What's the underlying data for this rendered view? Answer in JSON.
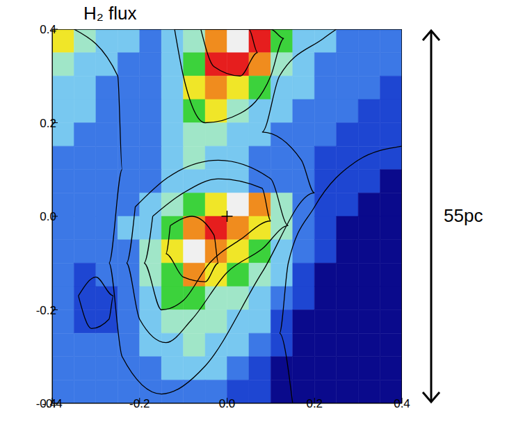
{
  "chart_data": {
    "type": "heatmap",
    "title": "H₂ flux",
    "annotations": [
      "55pc"
    ],
    "xlim": [
      -0.4,
      0.4
    ],
    "ylim": [
      -0.4,
      0.4
    ],
    "xticks": [
      -0.4,
      -0.2,
      {
        "value": 0,
        "label": "0.0"
      },
      0.2,
      0.4
    ],
    "yticks": [
      -0.4,
      -0.2,
      {
        "value": 0,
        "label": "0.0"
      },
      0.2,
      0.4
    ],
    "grid": false,
    "cell_x": [
      -0.375,
      -0.325,
      -0.275,
      -0.225,
      -0.175,
      -0.125,
      -0.075,
      -0.025,
      0.025,
      0.075,
      0.125,
      0.175,
      0.225,
      0.275,
      0.325,
      0.375
    ],
    "cell_y": [
      0.375,
      0.325,
      0.275,
      0.225,
      0.175,
      0.125,
      0.075,
      0.025,
      -0.025,
      -0.075,
      -0.125,
      -0.175,
      -0.225,
      -0.275,
      -0.325,
      -0.375
    ],
    "cells": [
      [
        7,
        5,
        4,
        4,
        3,
        4,
        5,
        8,
        10,
        9,
        6,
        4,
        4,
        3,
        3,
        3
      ],
      [
        5,
        4,
        4,
        3,
        3,
        4,
        6,
        9,
        9,
        8,
        5,
        4,
        3,
        3,
        3,
        3
      ],
      [
        4,
        4,
        3,
        3,
        3,
        4,
        7,
        8,
        7,
        6,
        4,
        4,
        3,
        3,
        3,
        2
      ],
      [
        4,
        4,
        3,
        3,
        3,
        4,
        6,
        7,
        5,
        4,
        4,
        3,
        3,
        3,
        2,
        2
      ],
      [
        4,
        3,
        3,
        3,
        3,
        4,
        5,
        5,
        4,
        4,
        3,
        3,
        3,
        2,
        2,
        2
      ],
      [
        3,
        3,
        3,
        3,
        3,
        4,
        5,
        4,
        4,
        3,
        3,
        3,
        2,
        2,
        2,
        2
      ],
      [
        3,
        3,
        3,
        3,
        3,
        4,
        4,
        4,
        4,
        3,
        3,
        3,
        2,
        2,
        2,
        1
      ],
      [
        3,
        3,
        3,
        3,
        4,
        5,
        6,
        7,
        10,
        8,
        5,
        3,
        2,
        2,
        1,
        1
      ],
      [
        3,
        3,
        3,
        4,
        4,
        6,
        8,
        9,
        8,
        7,
        5,
        3,
        2,
        1,
        1,
        1
      ],
      [
        3,
        3,
        3,
        3,
        5,
        7,
        10,
        8,
        7,
        6,
        4,
        3,
        2,
        1,
        1,
        1
      ],
      [
        3,
        2,
        3,
        3,
        5,
        6,
        8,
        7,
        6,
        5,
        4,
        2,
        1,
        1,
        1,
        1
      ],
      [
        3,
        2,
        2,
        3,
        4,
        6,
        6,
        5,
        5,
        4,
        3,
        2,
        1,
        1,
        1,
        1
      ],
      [
        3,
        2,
        2,
        3,
        4,
        5,
        5,
        5,
        4,
        4,
        2,
        1,
        1,
        1,
        1,
        1
      ],
      [
        3,
        3,
        3,
        3,
        4,
        4,
        5,
        4,
        4,
        3,
        2,
        1,
        1,
        1,
        1,
        1
      ],
      [
        3,
        3,
        3,
        3,
        3,
        4,
        4,
        4,
        3,
        2,
        1,
        1,
        1,
        1,
        1,
        1
      ],
      [
        3,
        3,
        3,
        3,
        3,
        3,
        3,
        3,
        2,
        2,
        1,
        1,
        1,
        1,
        1,
        1
      ]
    ],
    "contours": [
      {
        "x": [
          -0.13,
          -0.08,
          -0.03,
          -0.02,
          -0.05,
          -0.1,
          -0.14,
          -0.13
        ],
        "y": [
          -0.02,
          0.0,
          -0.04,
          -0.1,
          -0.14,
          -0.13,
          -0.08,
          -0.02
        ]
      },
      {
        "x": [
          -0.17,
          -0.1,
          -0.02,
          0.08,
          0.1,
          0.03,
          -0.04,
          -0.1,
          -0.15,
          -0.19,
          -0.17
        ],
        "y": [
          0.0,
          0.05,
          0.08,
          0.06,
          -0.01,
          -0.05,
          -0.1,
          -0.18,
          -0.2,
          -0.1,
          0.0
        ]
      },
      {
        "x": [
          -0.21,
          -0.14,
          -0.02,
          0.1,
          0.14,
          0.08,
          0.0,
          -0.08,
          -0.14,
          -0.2,
          -0.23,
          -0.21
        ],
        "y": [
          0.02,
          0.08,
          0.12,
          0.08,
          -0.02,
          -0.07,
          -0.12,
          -0.22,
          -0.27,
          -0.22,
          -0.1,
          0.02
        ]
      },
      {
        "x": [
          -0.06,
          -0.03,
          0.03,
          0.07,
          0.05,
          -0.06
        ],
        "y": [
          0.4,
          0.32,
          0.3,
          0.35,
          0.4,
          0.4
        ]
      },
      {
        "x": [
          -0.12,
          -0.1,
          -0.05,
          0.03,
          0.1,
          0.13,
          0.1,
          -0.12
        ],
        "y": [
          0.4,
          0.3,
          0.2,
          0.22,
          0.3,
          0.38,
          0.4,
          0.4
        ]
      },
      {
        "x": [
          -0.34,
          -0.3,
          -0.26,
          -0.27,
          -0.31,
          -0.34
        ],
        "y": [
          -0.17,
          -0.13,
          -0.17,
          -0.22,
          -0.24,
          -0.17
        ]
      },
      {
        "x": [
          -0.35,
          -0.25,
          -0.24,
          -0.27,
          -0.24,
          -0.15,
          -0.05,
          0.08,
          0.2,
          0.17,
          0.08,
          0.12,
          0.22,
          0.25
        ],
        "y": [
          0.4,
          0.3,
          0.1,
          -0.1,
          -0.3,
          -0.38,
          -0.32,
          -0.12,
          0.05,
          0.12,
          0.18,
          0.3,
          0.38,
          0.4
        ]
      },
      {
        "x": [
          0.4,
          0.3,
          0.2,
          0.14,
          0.12,
          0.15
        ],
        "y": [
          0.15,
          0.12,
          0.02,
          -0.1,
          -0.25,
          -0.4
        ]
      }
    ],
    "points": [
      {
        "x": 0,
        "y": 0,
        "marker": "plus"
      }
    ]
  }
}
